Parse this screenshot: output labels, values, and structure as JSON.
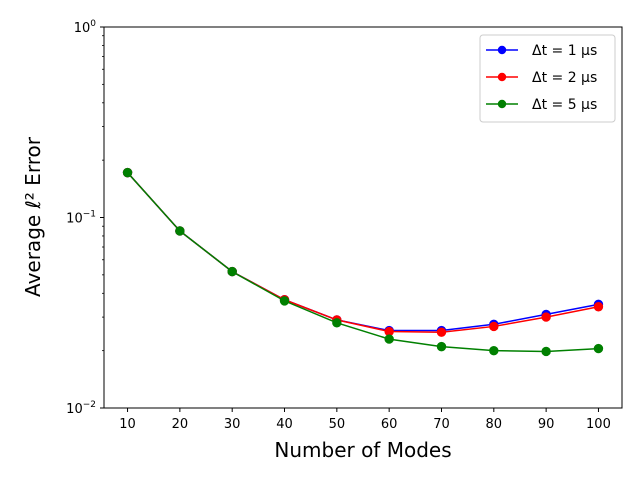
{
  "chart_data": {
    "type": "line",
    "title": "",
    "xlabel": "Number of Modes",
    "ylabel": "Average ℓ² Error",
    "yscale": "log",
    "ylim": [
      0.01,
      1
    ],
    "xlim": [
      5.5,
      104.5
    ],
    "x": [
      10,
      20,
      30,
      40,
      50,
      60,
      70,
      80,
      90,
      100
    ],
    "x_tick_labels": [
      "10",
      "20",
      "30",
      "40",
      "50",
      "60",
      "70",
      "80",
      "90",
      "100"
    ],
    "y_ticks": [
      {
        "value": 0.01,
        "base": "10",
        "exp": "−2"
      },
      {
        "value": 0.1,
        "base": "10",
        "exp": "−1"
      },
      {
        "value": 1,
        "base": "10",
        "exp": "0"
      }
    ],
    "legend_position": "top-right",
    "grid": false,
    "series": [
      {
        "name": "Δt = 1 μs",
        "color": "#0000ff",
        "values": [
          0.172,
          0.085,
          0.052,
          0.037,
          0.029,
          0.0255,
          0.0255,
          0.0275,
          0.031,
          0.035
        ]
      },
      {
        "name": "Δt = 2 μs",
        "color": "#ff0000",
        "values": [
          0.172,
          0.085,
          0.052,
          0.037,
          0.029,
          0.0252,
          0.025,
          0.0268,
          0.03,
          0.034
        ]
      },
      {
        "name": "Δt = 5 μs",
        "color": "#008000",
        "values": [
          0.172,
          0.085,
          0.052,
          0.0365,
          0.028,
          0.023,
          0.021,
          0.02,
          0.0198,
          0.0205
        ]
      }
    ]
  }
}
